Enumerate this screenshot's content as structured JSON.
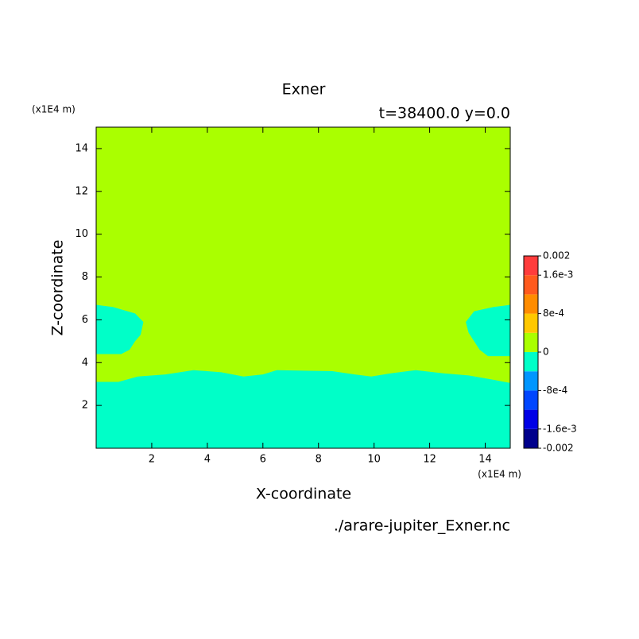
{
  "chart_data": {
    "type": "contour",
    "title": "Exner",
    "subtitle": "t=38400.0 y=0.0",
    "x_label": "X-coordinate",
    "y_label": "Z-coordinate",
    "x_unit": "(x1E4 m)",
    "y_unit": "(x1E4 m)",
    "footer": "./arare-jupiter_Exner.nc",
    "xlim": [
      0,
      14.9
    ],
    "ylim": [
      0,
      15
    ],
    "xticks": [
      2,
      4,
      6,
      8,
      10,
      12,
      14
    ],
    "yticks": [
      2,
      4,
      6,
      8,
      10,
      12,
      14
    ],
    "background_color": "#aaff00",
    "regions": [
      {
        "color": "#00ffc8",
        "x": [
          0,
          0.8,
          1.5,
          2.5,
          3.5,
          4.5,
          5.3,
          6,
          6.5,
          8.5,
          9.3,
          9.9,
          10.6,
          11.5,
          12.5,
          13.4,
          14.3,
          14.9,
          14.9,
          0
        ],
        "z": [
          3.1,
          3.1,
          3.35,
          3.45,
          3.65,
          3.55,
          3.35,
          3.45,
          3.65,
          3.6,
          3.45,
          3.35,
          3.5,
          3.65,
          3.5,
          3.4,
          3.2,
          3.05,
          0,
          0
        ]
      },
      {
        "color": "#00ffc8",
        "x": [
          0,
          0.6,
          1.4,
          1.7,
          1.6,
          1.4,
          1.2,
          0.9,
          0
        ],
        "z": [
          6.7,
          6.6,
          6.3,
          5.9,
          5.3,
          5.0,
          4.6,
          4.4,
          4.4
        ]
      },
      {
        "color": "#00ffc8",
        "x": [
          14.9,
          14.3,
          13.6,
          13.3,
          13.4,
          13.6,
          13.8,
          14.1,
          14.9
        ],
        "z": [
          6.7,
          6.6,
          6.4,
          5.9,
          5.4,
          5.0,
          4.6,
          4.3,
          4.3
        ]
      }
    ],
    "colorbar": {
      "lim": [
        -0.002,
        0.002
      ],
      "levels": [
        -0.002,
        -0.0016,
        -0.0012,
        -0.0008,
        -0.0004,
        0,
        0.0004,
        0.0008,
        0.0012,
        0.0016,
        0.002
      ],
      "colors": [
        "#00008c",
        "#0000e6",
        "#0046ff",
        "#0096ff",
        "#00ffc8",
        "#aaff00",
        "#ffc800",
        "#ff8c00",
        "#ff5a1e",
        "#ff3c3c"
      ],
      "ticks": [
        -0.002,
        {
          "value": -0.0016,
          "label": "-1.6e-3"
        },
        {
          "value": -0.0008,
          "label": "-8e-4"
        },
        0,
        {
          "value": 0.0008,
          "label": "8e-4"
        },
        {
          "value": 0.0016,
          "label": "1.6e-3"
        },
        0.002
      ]
    }
  }
}
